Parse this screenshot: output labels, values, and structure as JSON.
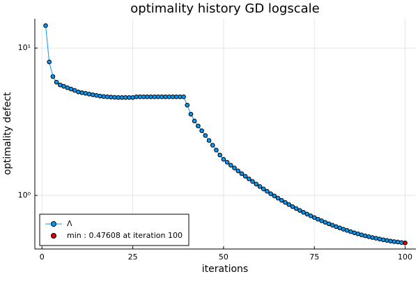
{
  "chart_data": {
    "type": "line",
    "title": "optimality history GD logscale",
    "xlabel": "iterations",
    "ylabel": "optimality defect",
    "x": [
      1,
      2,
      3,
      4,
      5,
      6,
      7,
      8,
      9,
      10,
      11,
      12,
      13,
      14,
      15,
      16,
      17,
      18,
      19,
      20,
      21,
      22,
      23,
      24,
      25,
      26,
      27,
      28,
      29,
      30,
      31,
      32,
      33,
      34,
      35,
      36,
      37,
      38,
      39,
      40,
      41,
      42,
      43,
      44,
      45,
      46,
      47,
      48,
      49,
      50,
      51,
      52,
      53,
      54,
      55,
      56,
      57,
      58,
      59,
      60,
      61,
      62,
      63,
      64,
      65,
      66,
      67,
      68,
      69,
      70,
      71,
      72,
      73,
      74,
      75,
      76,
      77,
      78,
      79,
      80,
      81,
      82,
      83,
      84,
      85,
      86,
      87,
      88,
      89,
      90,
      91,
      92,
      93,
      94,
      95,
      96,
      97,
      98,
      99,
      100
    ],
    "series": [
      {
        "name": "Λ",
        "color": "#009af9",
        "values": [
          14.2,
          8.05,
          6.41,
          5.87,
          5.62,
          5.5,
          5.38,
          5.27,
          5.16,
          5.04,
          4.98,
          4.93,
          4.87,
          4.82,
          4.77,
          4.72,
          4.69,
          4.67,
          4.65,
          4.63,
          4.62,
          4.62,
          4.62,
          4.62,
          4.62,
          4.67,
          4.67,
          4.67,
          4.67,
          4.67,
          4.67,
          4.67,
          4.67,
          4.67,
          4.67,
          4.67,
          4.67,
          4.67,
          4.67,
          4.1,
          3.56,
          3.2,
          2.96,
          2.75,
          2.55,
          2.36,
          2.19,
          2.03,
          1.88,
          1.758,
          1.679,
          1.604,
          1.534,
          1.468,
          1.406,
          1.349,
          1.294,
          1.243,
          1.194,
          1.149,
          1.106,
          1.066,
          1.027,
          0.992,
          0.958,
          0.926,
          0.896,
          0.867,
          0.84,
          0.815,
          0.791,
          0.768,
          0.747,
          0.727,
          0.708,
          0.69,
          0.673,
          0.657,
          0.642,
          0.628,
          0.614,
          0.602,
          0.59,
          0.579,
          0.568,
          0.558,
          0.549,
          0.54,
          0.532,
          0.525,
          0.518,
          0.512,
          0.506,
          0.5,
          0.495,
          0.49,
          0.486,
          0.483,
          0.479,
          0.47608
        ]
      },
      {
        "name": "min : 0.47608 at iteration 100",
        "color": "#e30000",
        "x": [
          100
        ],
        "values": [
          0.47608
        ]
      }
    ],
    "xlim": [
      -1.97,
      102.97
    ],
    "ylim": [
      0.433,
      15.8
    ],
    "log_y": true,
    "xticks": [
      0,
      25,
      50,
      75,
      100
    ],
    "yticks": [
      {
        "value": 1,
        "label": "10⁰"
      },
      {
        "value": 10,
        "label": "10¹"
      }
    ],
    "grid": true,
    "legend": "bottom-left"
  }
}
